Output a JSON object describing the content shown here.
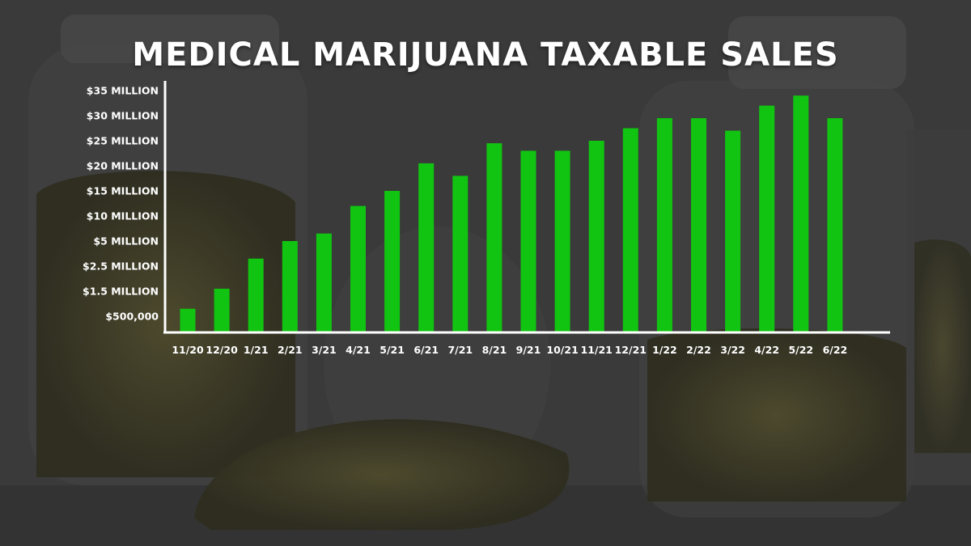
{
  "title": "MEDICAL MARIJUANA TAXABLE SALES",
  "colors": {
    "bar": "#11c411",
    "axis": "#ffffff",
    "background": "#3a3a3a"
  },
  "chart_data": {
    "type": "bar",
    "title": "MEDICAL MARIJUANA TAXABLE SALES",
    "xlabel": "",
    "ylabel": "",
    "grid": false,
    "y_ticks": [
      "$500,000",
      "$1.5 MILLION",
      "$2.5 MILLION",
      "$5 MILLION",
      "$10 MILLION",
      "$15 MILLION",
      "$20 MILLION",
      "$25 MILLION",
      "$30 MILLION",
      "$35 MILLION"
    ],
    "categories": [
      "11/20",
      "12/20",
      "1/21",
      "2/21",
      "3/21",
      "4/21",
      "5/21",
      "6/21",
      "7/21",
      "8/21",
      "9/21",
      "10/21",
      "11/21",
      "12/21",
      "1/22",
      "2/22",
      "3/22",
      "4/22",
      "5/22",
      "6/22"
    ],
    "values_tick_index": [
      0.3,
      1.1,
      2.3,
      3.0,
      3.3,
      4.4,
      5.0,
      6.1,
      5.6,
      6.9,
      6.6,
      6.6,
      7.0,
      7.5,
      7.9,
      7.9,
      7.4,
      8.4,
      8.8,
      7.9
    ]
  }
}
